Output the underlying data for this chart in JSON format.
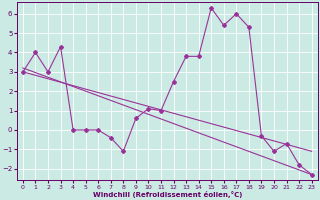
{
  "xlabel": "Windchill (Refroidissement éolien,°C)",
  "background_color": "#cceae4",
  "grid_color": "#ffffff",
  "line_color": "#993399",
  "spine_color": "#660066",
  "ylim": [
    -2.6,
    6.6
  ],
  "xlim": [
    -0.5,
    23.5
  ],
  "yticks": [
    -2,
    -1,
    0,
    1,
    2,
    3,
    4,
    5,
    6
  ],
  "xticks": [
    0,
    1,
    2,
    3,
    4,
    5,
    6,
    7,
    8,
    9,
    10,
    11,
    12,
    13,
    14,
    15,
    16,
    17,
    18,
    19,
    20,
    21,
    22,
    23
  ],
  "series1_x": [
    0,
    1,
    2,
    3,
    4,
    5,
    6,
    7,
    8,
    9,
    10,
    11,
    12,
    13,
    14,
    15,
    16,
    17,
    18,
    19,
    20,
    21,
    22,
    23
  ],
  "series1_y": [
    3.0,
    4.0,
    3.0,
    4.3,
    0.0,
    0.0,
    0.0,
    -0.4,
    -1.1,
    0.6,
    1.1,
    1.0,
    2.5,
    3.8,
    3.8,
    6.3,
    5.4,
    6.0,
    5.3,
    -0.3,
    -1.1,
    -0.7,
    -1.8,
    -2.3
  ],
  "trend1_x": [
    0,
    23
  ],
  "trend1_y": [
    3.0,
    -1.1
  ],
  "trend2_x": [
    0,
    23
  ],
  "trend2_y": [
    3.2,
    -2.3
  ],
  "marker": "D",
  "markersize": 2.0,
  "linewidth": 0.8
}
